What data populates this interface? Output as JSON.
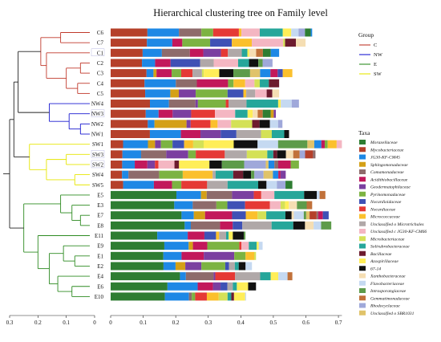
{
  "chart_data": {
    "type": "bar",
    "title": "Hierarchical clustering tree on Family level",
    "xlabel": "",
    "ylabel": "",
    "xlim": [
      0,
      0.7
    ],
    "x_ticks": [
      "0",
      "0.1",
      "0.2",
      "0.3",
      "0.4",
      "0.5",
      "0.6",
      "0.7"
    ],
    "tree_axis_ticks": [
      "0.3",
      "0.2",
      "0.1",
      "0"
    ],
    "groups_title": "Group",
    "groups": [
      {
        "name": "C",
        "color": "#c0392b"
      },
      {
        "name": "NW",
        "color": "#1a1ad0"
      },
      {
        "name": "E",
        "color": "#2e8b22"
      },
      {
        "name": "SW",
        "color": "#e6e600"
      }
    ],
    "taxa_title": "Taxa",
    "taxa": [
      {
        "name": "Moraxellaceae",
        "color": "#2e7d32"
      },
      {
        "name": "Mycobacteriaceae",
        "color": "#b5402a"
      },
      {
        "name": "JG30-KF-CM45",
        "color": "#1e88e5"
      },
      {
        "name": "Sphingomonadaceae",
        "color": "#d4a017"
      },
      {
        "name": "Comamonadaceae",
        "color": "#8e6b6b"
      },
      {
        "name": "Acidithiobacillaceae",
        "color": "#c2185b"
      },
      {
        "name": "Geodermatophilaceae",
        "color": "#7b3fa0"
      },
      {
        "name": "Pyrinomonadaceae",
        "color": "#7cb342"
      },
      {
        "name": "Nocardioidaceae",
        "color": "#3f51b5"
      },
      {
        "name": "Nocardiaceae",
        "color": "#e53935"
      },
      {
        "name": "Micrococcaceae",
        "color": "#fbc02d"
      },
      {
        "name": "Unclassified o Microtrichales",
        "color": "#b0a8a8"
      },
      {
        "name": "Unclassified c JG30-KF-CM66",
        "color": "#f4b6c2"
      },
      {
        "name": "Microbacteriaceae",
        "color": "#d4e157"
      },
      {
        "name": "Solirubrobacteraceae",
        "color": "#26a69a"
      },
      {
        "name": "Bacillaceae",
        "color": "#6d1b2e"
      },
      {
        "name": "Azospirillaceae",
        "color": "#ffee58"
      },
      {
        "name": "67-14",
        "color": "#111111"
      },
      {
        "name": "Xanthobacteraceae",
        "color": "#f5deb3"
      },
      {
        "name": "Flavobacteriaceae",
        "color": "#c5d9f1"
      },
      {
        "name": "Intrasporangiaceae",
        "color": "#5d9b4a"
      },
      {
        "name": "Gemmatimonadaceae",
        "color": "#c1713a"
      },
      {
        "name": "Rhodocyclaceae",
        "color": "#9fa8da"
      },
      {
        "name": "Unclassified o SBR1031",
        "color": "#e0c36a"
      }
    ],
    "samples": [
      {
        "name": "C6",
        "group": "C",
        "total": 0.61
      },
      {
        "name": "C7",
        "group": "C",
        "total": 0.59
      },
      {
        "name": "C1",
        "group": "C",
        "total": 0.51
      },
      {
        "name": "C2",
        "group": "C",
        "total": 0.49
      },
      {
        "name": "C3",
        "group": "C",
        "total": 0.55
      },
      {
        "name": "C4",
        "group": "C",
        "total": 0.51
      },
      {
        "name": "C5",
        "group": "C",
        "total": 0.51
      },
      {
        "name": "NW4",
        "group": "NW",
        "total": 0.57
      },
      {
        "name": "NW3",
        "group": "NW",
        "total": 0.5
      },
      {
        "name": "NW2",
        "group": "NW",
        "total": 0.52
      },
      {
        "name": "NW1",
        "group": "NW",
        "total": 0.54
      },
      {
        "name": "SW1",
        "group": "SW",
        "total": 0.7
      },
      {
        "name": "SW3",
        "group": "SW",
        "total": 0.62
      },
      {
        "name": "SW2",
        "group": "SW",
        "total": 0.57
      },
      {
        "name": "SW4",
        "group": "SW",
        "total": 0.53
      },
      {
        "name": "SW5",
        "group": "SW",
        "total": 0.55
      },
      {
        "name": "E5",
        "group": "E",
        "total": 0.65
      },
      {
        "name": "E3",
        "group": "E",
        "total": 0.61
      },
      {
        "name": "E7",
        "group": "E",
        "total": 0.66
      },
      {
        "name": "E8",
        "group": "E",
        "total": 0.67
      },
      {
        "name": "E11",
        "group": "E",
        "total": 0.41
      },
      {
        "name": "E9",
        "group": "E",
        "total": 0.46
      },
      {
        "name": "E1",
        "group": "E",
        "total": 0.44
      },
      {
        "name": "E2",
        "group": "E",
        "total": 0.43
      },
      {
        "name": "E4",
        "group": "E",
        "total": 0.55
      },
      {
        "name": "E6",
        "group": "E",
        "total": 0.44
      },
      {
        "name": "E10",
        "group": "E",
        "total": 0.41
      }
    ],
    "grid": false,
    "legend_position": "right"
  }
}
